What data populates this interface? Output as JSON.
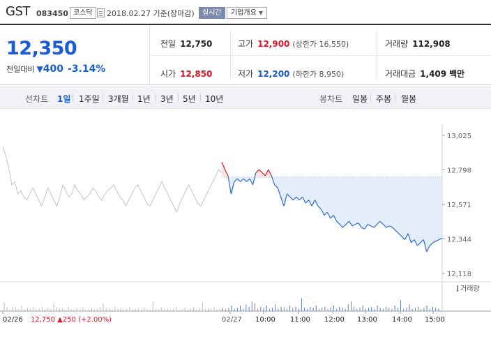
{
  "header": {
    "name": "GST",
    "code": "083450",
    "market": "코스닥",
    "date_text": "2018.02.27  기준(장마감)",
    "realtime_label": "실시간",
    "company_label": "기업개요"
  },
  "quote": {
    "price": "12,350",
    "change_label": "전일대비",
    "change": "400",
    "change_pct": "-3.14%",
    "prev_close_label": "전일",
    "prev_close": "12,750",
    "high_label": "고가",
    "high": "12,900",
    "upper_limit": "(상한가 16,550)",
    "volume_label": "거래량",
    "volume": "112,908",
    "open_label": "시가",
    "open": "12,850",
    "low_label": "저가",
    "low": "12,200",
    "lower_limit": "(하한가 8,950)",
    "amount_label": "거래대금",
    "amount": "1,409",
    "amount_unit": "백만"
  },
  "period_bar": {
    "line_label": "선차트",
    "line_periods": [
      "1일",
      "1주일",
      "3개월",
      "1년",
      "3년",
      "5년",
      "10년"
    ],
    "active_index": 0,
    "candle_label": "봉차트",
    "candle_periods": [
      "일봉",
      "주봉",
      "월봉"
    ]
  },
  "chart_data": {
    "type": "line",
    "y_ticks": [
      "13,025",
      "12,798",
      "12,571",
      "12,344",
      "12,118"
    ],
    "ylim": [
      12118,
      13025
    ],
    "reference": 12750,
    "x_tick_labels": [
      "02/26",
      "02/27",
      "10:00",
      "11:00",
      "12:00",
      "13:00",
      "14:00",
      "15:00"
    ],
    "prev_day_note": "12,750 ▲250 (+2.00%)",
    "volume_legend": "거래량",
    "prev_day_series": [
      12950,
      12890,
      12810,
      12700,
      12720,
      12640,
      12660,
      12620,
      12600,
      12640,
      12680,
      12640,
      12600,
      12560,
      12620,
      12680,
      12640,
      12600,
      12560,
      12620,
      12700,
      12660,
      12620,
      12640,
      12700,
      12660,
      12640,
      12600,
      12620,
      12640,
      12680,
      12660,
      12620,
      12600,
      12640,
      12660,
      12680,
      12700,
      12660,
      12620,
      12600,
      12560,
      12600,
      12640,
      12680,
      12700,
      12660,
      12620,
      12580,
      12560,
      12600,
      12640,
      12680,
      12720,
      12680,
      12640,
      12600,
      12560,
      12520,
      12580,
      12620,
      12660,
      12700,
      12660,
      12620,
      12580,
      12560,
      12600,
      12640,
      12680,
      12720,
      12760,
      12800,
      12780
    ],
    "today_series": [
      12850,
      12800,
      12760,
      12640,
      12720,
      12740,
      12720,
      12740,
      12720,
      12740,
      12700,
      12780,
      12800,
      12780,
      12760,
      12800,
      12760,
      12700,
      12680,
      12620,
      12560,
      12640,
      12620,
      12600,
      12620,
      12600,
      12620,
      12580,
      12600,
      12560,
      12600,
      12560,
      12540,
      12500,
      12520,
      12480,
      12500,
      12460,
      12440,
      12420,
      12440,
      12460,
      12430,
      12440,
      12450,
      12420,
      12410,
      12440,
      12430,
      12420,
      12440,
      12460,
      12440,
      12420,
      12430,
      12420,
      12400,
      12380,
      12360,
      12340,
      12380,
      12320,
      12340,
      12300,
      12320,
      12340,
      12260,
      12300,
      12320,
      12330,
      12340,
      12350
    ]
  }
}
